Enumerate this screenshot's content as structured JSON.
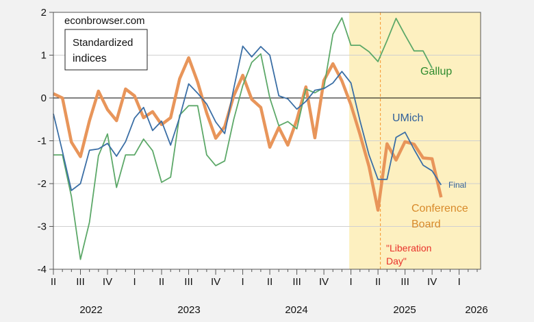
{
  "chart_data": {
    "type": "line",
    "title": "Standardized indices",
    "source_text": "econbrowser.com",
    "xlabel": "",
    "ylabel": "",
    "ylim": [
      -4,
      2
    ],
    "yticks": [
      "2",
      "1",
      "0",
      "-1",
      "-2",
      "-3",
      "-4"
    ],
    "ytick_values": [
      2,
      1,
      0,
      -1,
      -2,
      -3,
      -4
    ],
    "start_month": "2022-04",
    "x_quarter_labels": [
      "II",
      "III",
      "IV",
      "I",
      "II",
      "III",
      "IV",
      "I",
      "II",
      "III",
      "IV",
      "I",
      "II",
      "III",
      "IV",
      "I"
    ],
    "x_year_labels": [
      "2022",
      "2023",
      "2024",
      "2025",
      "2026"
    ],
    "grid": true,
    "shaded_region": {
      "from": "2025-01",
      "to": "end",
      "color": "#fdf0c0"
    },
    "event_line": {
      "month_index": 36,
      "label_line1": "\"Liberation",
      "label_line2": "Day\"",
      "color": "#e8302a"
    },
    "series": [
      {
        "name": "Conference Board",
        "label_line1": "Conference",
        "label_line2": "Board",
        "color": "#e8955a",
        "label_color": "#d88a2a",
        "values": [
          0.1,
          0.0,
          -1.03,
          -1.37,
          -0.53,
          0.16,
          -0.27,
          -0.53,
          0.21,
          0.05,
          -0.46,
          -0.32,
          -0.62,
          -0.46,
          0.45,
          0.94,
          0.37,
          -0.35,
          -0.94,
          -0.67,
          0.05,
          0.53,
          -0.03,
          -0.22,
          -1.15,
          -0.69,
          -1.1,
          -0.51,
          0.26,
          -0.93,
          0.41,
          0.8,
          0.4,
          -0.16,
          -0.85,
          -1.6,
          -2.62,
          -1.07,
          -1.45,
          -1.02,
          -1.08,
          -1.4,
          -1.42,
          -2.32
        ]
      },
      {
        "name": "UMich",
        "label": "UMich",
        "end_label": "Final",
        "color": "#3a6ea5",
        "label_color": "#2f5f9a",
        "values": [
          -0.37,
          -1.25,
          -2.16,
          -2.0,
          -1.22,
          -1.19,
          -1.06,
          -1.36,
          -1.02,
          -0.47,
          -0.22,
          -0.76,
          -0.54,
          -1.1,
          -0.45,
          0.33,
          0.11,
          -0.14,
          -0.56,
          -0.83,
          0.22,
          1.21,
          0.96,
          1.2,
          1.0,
          0.05,
          -0.02,
          -0.26,
          -0.08,
          0.18,
          0.22,
          0.35,
          0.62,
          0.35,
          -0.53,
          -1.33,
          -1.9,
          -1.9,
          -0.92,
          -0.8,
          -1.2,
          -1.57,
          -1.7,
          -2.03
        ]
      },
      {
        "name": "Gallup",
        "label": "Gallup",
        "color": "#5ca868",
        "label_color": "#2e8b2e",
        "values": [
          -1.33,
          -1.33,
          -2.3,
          -3.77,
          -2.9,
          -1.35,
          -0.84,
          -2.09,
          -1.33,
          -1.33,
          -0.96,
          -1.23,
          -1.97,
          -1.85,
          -0.4,
          -0.18,
          -0.18,
          -1.33,
          -1.58,
          -1.47,
          -0.5,
          0.29,
          0.83,
          1.03,
          0.0,
          -0.65,
          -0.55,
          -0.72,
          0.21,
          0.12,
          0.24,
          1.49,
          1.87,
          1.23,
          1.23,
          1.08,
          0.85,
          1.34,
          1.86,
          1.47,
          1.1,
          1.1,
          0.7
        ]
      }
    ]
  }
}
